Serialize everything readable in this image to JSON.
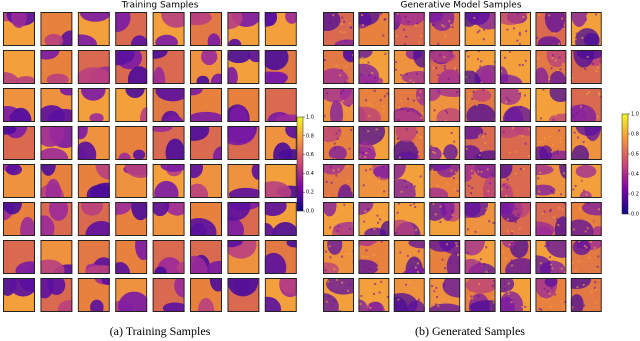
{
  "panels": [
    {
      "title": "Training Samples",
      "colorbar_ticks": [
        "0.0",
        "0.2",
        "0.4",
        "0.6",
        "0.8",
        "1.0"
      ],
      "caption": "(a) Training Samples"
    },
    {
      "title": "Generative Model Samples",
      "colorbar_ticks": [
        "0.0",
        "0.2",
        "0.4",
        "0.6",
        "0.8",
        "1.0"
      ],
      "caption": "(b) Generated Samples"
    }
  ]
}
